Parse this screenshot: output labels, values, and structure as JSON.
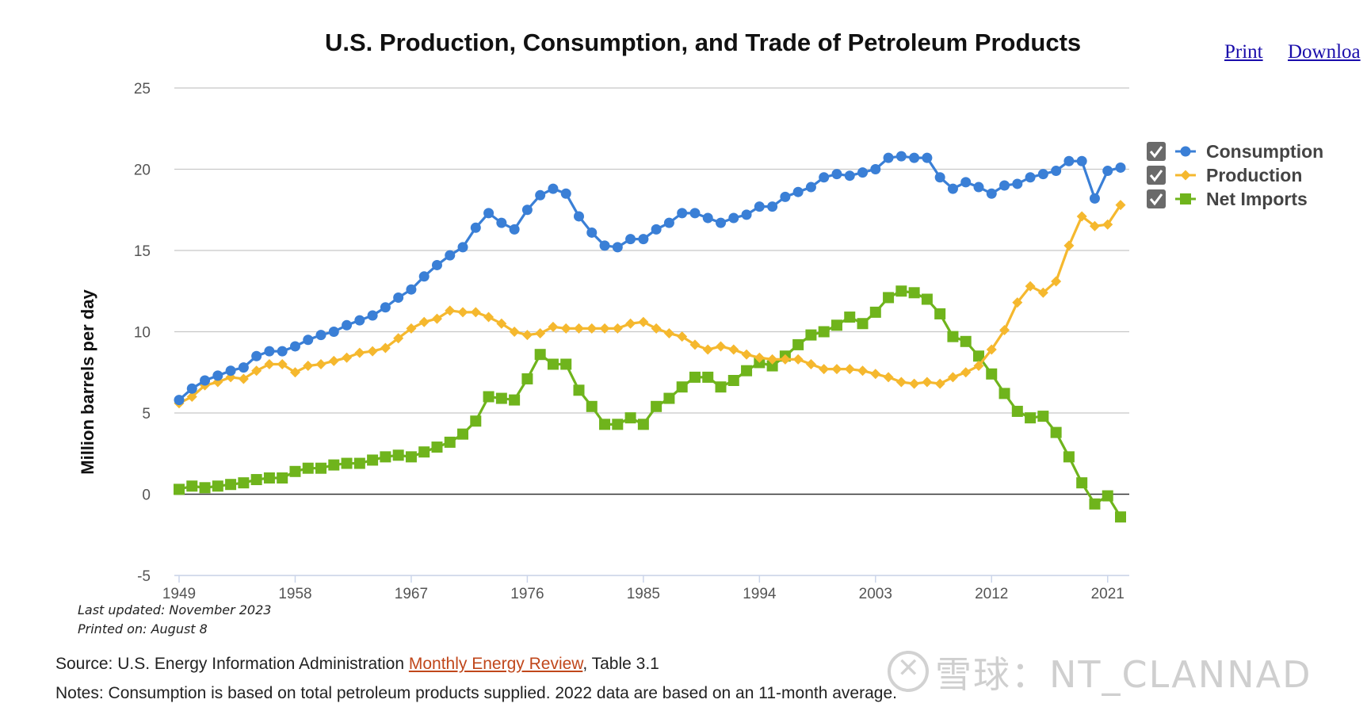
{
  "header": {
    "title": "U.S. Production, Consumption, and Trade of Petroleum Products",
    "print_label": "Print",
    "download_label": "Downloa"
  },
  "chart_data": {
    "type": "line",
    "title": "U.S. Production, Consumption, and Trade of Petroleum Products",
    "ylabel": "Million barrels per day",
    "xlabel": "",
    "ylim": [
      -5,
      25
    ],
    "xlim": [
      1949,
      2022
    ],
    "y_ticks": [
      "25",
      "20",
      "15",
      "10",
      "5",
      "0",
      "-5"
    ],
    "x_ticks": [
      "1949",
      "1958",
      "1967",
      "1976",
      "1985",
      "1994",
      "2003",
      "2012",
      "2021"
    ],
    "grid": true,
    "legend_position": "right",
    "x": [
      1949,
      1950,
      1951,
      1952,
      1953,
      1954,
      1955,
      1956,
      1957,
      1958,
      1959,
      1960,
      1961,
      1962,
      1963,
      1964,
      1965,
      1966,
      1967,
      1968,
      1969,
      1970,
      1971,
      1972,
      1973,
      1974,
      1975,
      1976,
      1977,
      1978,
      1979,
      1980,
      1981,
      1982,
      1983,
      1984,
      1985,
      1986,
      1987,
      1988,
      1989,
      1990,
      1991,
      1992,
      1993,
      1994,
      1995,
      1996,
      1997,
      1998,
      1999,
      2000,
      2001,
      2002,
      2003,
      2004,
      2005,
      2006,
      2007,
      2008,
      2009,
      2010,
      2011,
      2012,
      2013,
      2014,
      2015,
      2016,
      2017,
      2018,
      2019,
      2020,
      2021,
      2022
    ],
    "series": [
      {
        "name": "Consumption",
        "color": "#3a7fd6",
        "marker": "circle",
        "values": [
          5.8,
          6.5,
          7.0,
          7.3,
          7.6,
          7.8,
          8.5,
          8.8,
          8.8,
          9.1,
          9.5,
          9.8,
          10.0,
          10.4,
          10.7,
          11.0,
          11.5,
          12.1,
          12.6,
          13.4,
          14.1,
          14.7,
          15.2,
          16.4,
          17.3,
          16.7,
          16.3,
          17.5,
          18.4,
          18.8,
          18.5,
          17.1,
          16.1,
          15.3,
          15.2,
          15.7,
          15.7,
          16.3,
          16.7,
          17.3,
          17.3,
          17.0,
          16.7,
          17.0,
          17.2,
          17.7,
          17.7,
          18.3,
          18.6,
          18.9,
          19.5,
          19.7,
          19.6,
          19.8,
          20.0,
          20.7,
          20.8,
          20.7,
          20.7,
          19.5,
          18.8,
          19.2,
          18.9,
          18.5,
          19.0,
          19.1,
          19.5,
          19.7,
          19.9,
          20.5,
          20.5,
          18.2,
          19.9,
          20.1
        ]
      },
      {
        "name": "Production",
        "color": "#f5b82e",
        "marker": "diamond",
        "values": [
          5.6,
          6.0,
          6.7,
          6.9,
          7.2,
          7.1,
          7.6,
          8.0,
          8.0,
          7.5,
          7.9,
          8.0,
          8.2,
          8.4,
          8.7,
          8.8,
          9.0,
          9.6,
          10.2,
          10.6,
          10.8,
          11.3,
          11.2,
          11.2,
          10.9,
          10.5,
          10.0,
          9.8,
          9.9,
          10.3,
          10.2,
          10.2,
          10.2,
          10.2,
          10.2,
          10.5,
          10.6,
          10.2,
          9.9,
          9.7,
          9.2,
          8.9,
          9.1,
          8.9,
          8.6,
          8.4,
          8.3,
          8.3,
          8.3,
          8.0,
          7.7,
          7.7,
          7.7,
          7.6,
          7.4,
          7.2,
          6.9,
          6.8,
          6.9,
          6.8,
          7.2,
          7.5,
          7.9,
          8.9,
          10.1,
          11.8,
          12.8,
          12.4,
          13.1,
          15.3,
          17.1,
          16.5,
          16.6,
          17.8
        ]
      },
      {
        "name": "Net Imports",
        "color": "#6fb41c",
        "marker": "square",
        "values": [
          0.3,
          0.5,
          0.4,
          0.5,
          0.6,
          0.7,
          0.9,
          1.0,
          1.0,
          1.4,
          1.6,
          1.6,
          1.8,
          1.9,
          1.9,
          2.1,
          2.3,
          2.4,
          2.3,
          2.6,
          2.9,
          3.2,
          3.7,
          4.5,
          6.0,
          5.9,
          5.8,
          7.1,
          8.6,
          8.0,
          8.0,
          6.4,
          5.4,
          4.3,
          4.3,
          4.7,
          4.3,
          5.4,
          5.9,
          6.6,
          7.2,
          7.2,
          6.6,
          7.0,
          7.6,
          8.1,
          7.9,
          8.5,
          9.2,
          9.8,
          10.0,
          10.4,
          10.9,
          10.5,
          11.2,
          12.1,
          12.5,
          12.4,
          12.0,
          11.1,
          9.7,
          9.4,
          8.5,
          7.4,
          6.2,
          5.1,
          4.7,
          4.8,
          3.8,
          2.3,
          0.7,
          -0.6,
          -0.1,
          -1.4
        ]
      }
    ]
  },
  "legend": [
    {
      "label": "Consumption",
      "checked": true
    },
    {
      "label": "Production",
      "checked": true
    },
    {
      "label": "Net Imports",
      "checked": true
    }
  ],
  "footer": {
    "last_updated": "Last updated: November 2023",
    "printed_on": "Printed on: August 8",
    "source_prefix": "Source: U.S. Energy Information Administration ",
    "source_link": "Monthly Energy Review",
    "source_suffix": ", Table 3.1",
    "notes": "Notes: Consumption is based on total petroleum products supplied. 2022 data are based on an 11-month average."
  },
  "watermark": "雪球：NT_CLANNAD"
}
